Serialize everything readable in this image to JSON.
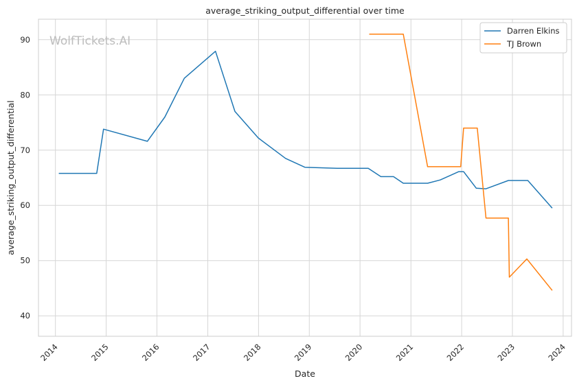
{
  "chart_data": {
    "type": "line",
    "title": "average_striking_output_differential over time",
    "xlabel": "Date",
    "ylabel": "average_striking_output_differential",
    "watermark": "WolfTickets.AI",
    "grid": true,
    "legend_position": "top-right",
    "xlim": [
      "2013-09-01",
      "2024-03-01"
    ],
    "ylim": [
      36.3,
      93.7
    ],
    "x_ticks": [
      "2014-01-01",
      "2015-01-01",
      "2016-01-01",
      "2017-01-01",
      "2018-01-01",
      "2019-01-01",
      "2020-01-01",
      "2021-01-01",
      "2022-01-01",
      "2023-01-01",
      "2024-01-01"
    ],
    "x_tick_labels": [
      "2014",
      "2015",
      "2016",
      "2017",
      "2018",
      "2019",
      "2020",
      "2021",
      "2022",
      "2023",
      "2024"
    ],
    "y_ticks": [
      40,
      50,
      60,
      70,
      80,
      90
    ],
    "y_tick_labels": [
      "40",
      "50",
      "60",
      "70",
      "80",
      "90"
    ],
    "series": [
      {
        "name": "Darren Elkins",
        "color": "#1f77b4",
        "points": [
          [
            "2014-01-25",
            65.8
          ],
          [
            "2014-10-25",
            65.8
          ],
          [
            "2014-12-13",
            73.8
          ],
          [
            "2015-10-24",
            71.6
          ],
          [
            "2016-02-27",
            76.0
          ],
          [
            "2016-07-16",
            83.0
          ],
          [
            "2017-02-25",
            87.9
          ],
          [
            "2017-07-15",
            77.0
          ],
          [
            "2017-12-30",
            72.2
          ],
          [
            "2018-07-14",
            68.5
          ],
          [
            "2018-11-30",
            66.9
          ],
          [
            "2019-07-20",
            66.7
          ],
          [
            "2020-02-29",
            66.7
          ],
          [
            "2020-05-30",
            65.2
          ],
          [
            "2020-08-29",
            65.2
          ],
          [
            "2020-11-07",
            64.0
          ],
          [
            "2021-05-01",
            64.0
          ],
          [
            "2021-07-31",
            64.6
          ],
          [
            "2021-12-11",
            66.1
          ],
          [
            "2022-01-15",
            66.1
          ],
          [
            "2022-04-16",
            63.1
          ],
          [
            "2022-06-25",
            63.0
          ],
          [
            "2022-12-03",
            64.5
          ],
          [
            "2023-04-22",
            64.5
          ],
          [
            "2023-10-14",
            59.5
          ]
        ]
      },
      {
        "name": "TJ Brown",
        "color": "#ff7f0e",
        "points": [
          [
            "2020-03-07",
            91.0
          ],
          [
            "2020-11-07",
            91.0
          ],
          [
            "2021-05-01",
            67.0
          ],
          [
            "2021-12-25",
            67.0
          ],
          [
            "2022-01-15",
            74.0
          ],
          [
            "2022-04-23",
            74.0
          ],
          [
            "2022-06-25",
            57.7
          ],
          [
            "2022-12-03",
            57.7
          ],
          [
            "2022-12-10",
            47.0
          ],
          [
            "2023-04-15",
            50.3
          ],
          [
            "2023-10-14",
            44.6
          ]
        ]
      }
    ]
  }
}
